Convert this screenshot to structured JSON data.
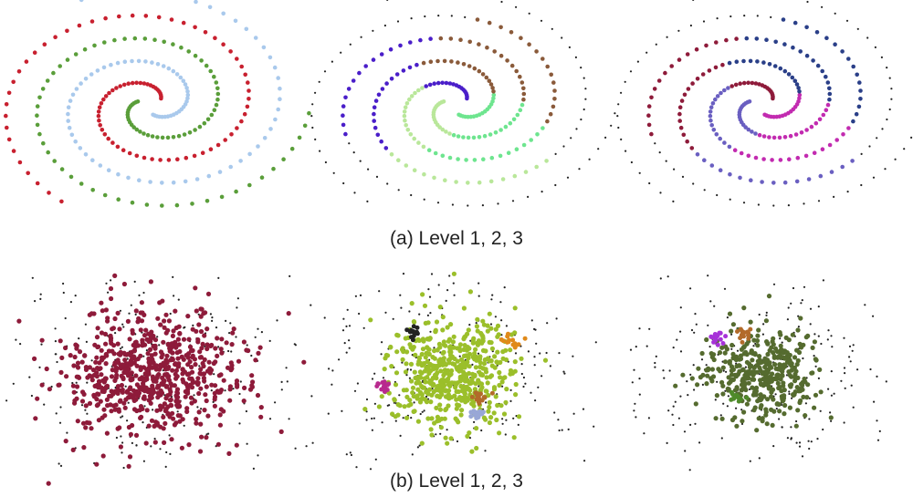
{
  "captions": {
    "a": "(a)  Level 1, 2, 3",
    "b": "(b)  Level 1, 2, 3"
  },
  "chart_data": [
    {
      "type": "scatter",
      "row": "a",
      "title": "",
      "description_of_data": "three interleaved spiral arms, three hierarchy levels",
      "palette_by_level": [
        [
          "#c8202f",
          "#5a9e3a",
          "#a9c9ec"
        ],
        [
          "#4a1ec9",
          "#b9e79a",
          "#6ee58f",
          "#8a5a3a"
        ],
        [
          "#8e1b3a",
          "#6a5fc1",
          "#c22bb0",
          "#2a3f88"
        ]
      ],
      "series": [
        {
          "arm": 1,
          "points": 90,
          "level1": "#c8202f"
        },
        {
          "arm": 2,
          "points": 90,
          "level1": "#5a9e3a"
        },
        {
          "arm": 3,
          "points": 90,
          "level1": "#a9c9ec"
        }
      ],
      "noise_color": "#222222",
      "xlim": [
        -1,
        1
      ],
      "ylim": [
        -1,
        1
      ],
      "grid": false
    },
    {
      "type": "scatter",
      "row": "b",
      "title": "",
      "description_of_data": "dense gaussian blob with sparse background noise, three hierarchy levels",
      "cluster_colors_by_level": [
        [
          "#8e1b3a"
        ],
        [
          "#9bbf2a",
          "#222222",
          "#e08a1a",
          "#b82a8e",
          "#b26a2a",
          "#99a7d6"
        ],
        [
          "#556b2f",
          "#a632d8",
          "#b26a2a",
          "#4f8a2a"
        ]
      ],
      "noise_color": "#222222",
      "xlim": [
        -1,
        1
      ],
      "ylim": [
        -1,
        1
      ],
      "grid": false
    }
  ]
}
